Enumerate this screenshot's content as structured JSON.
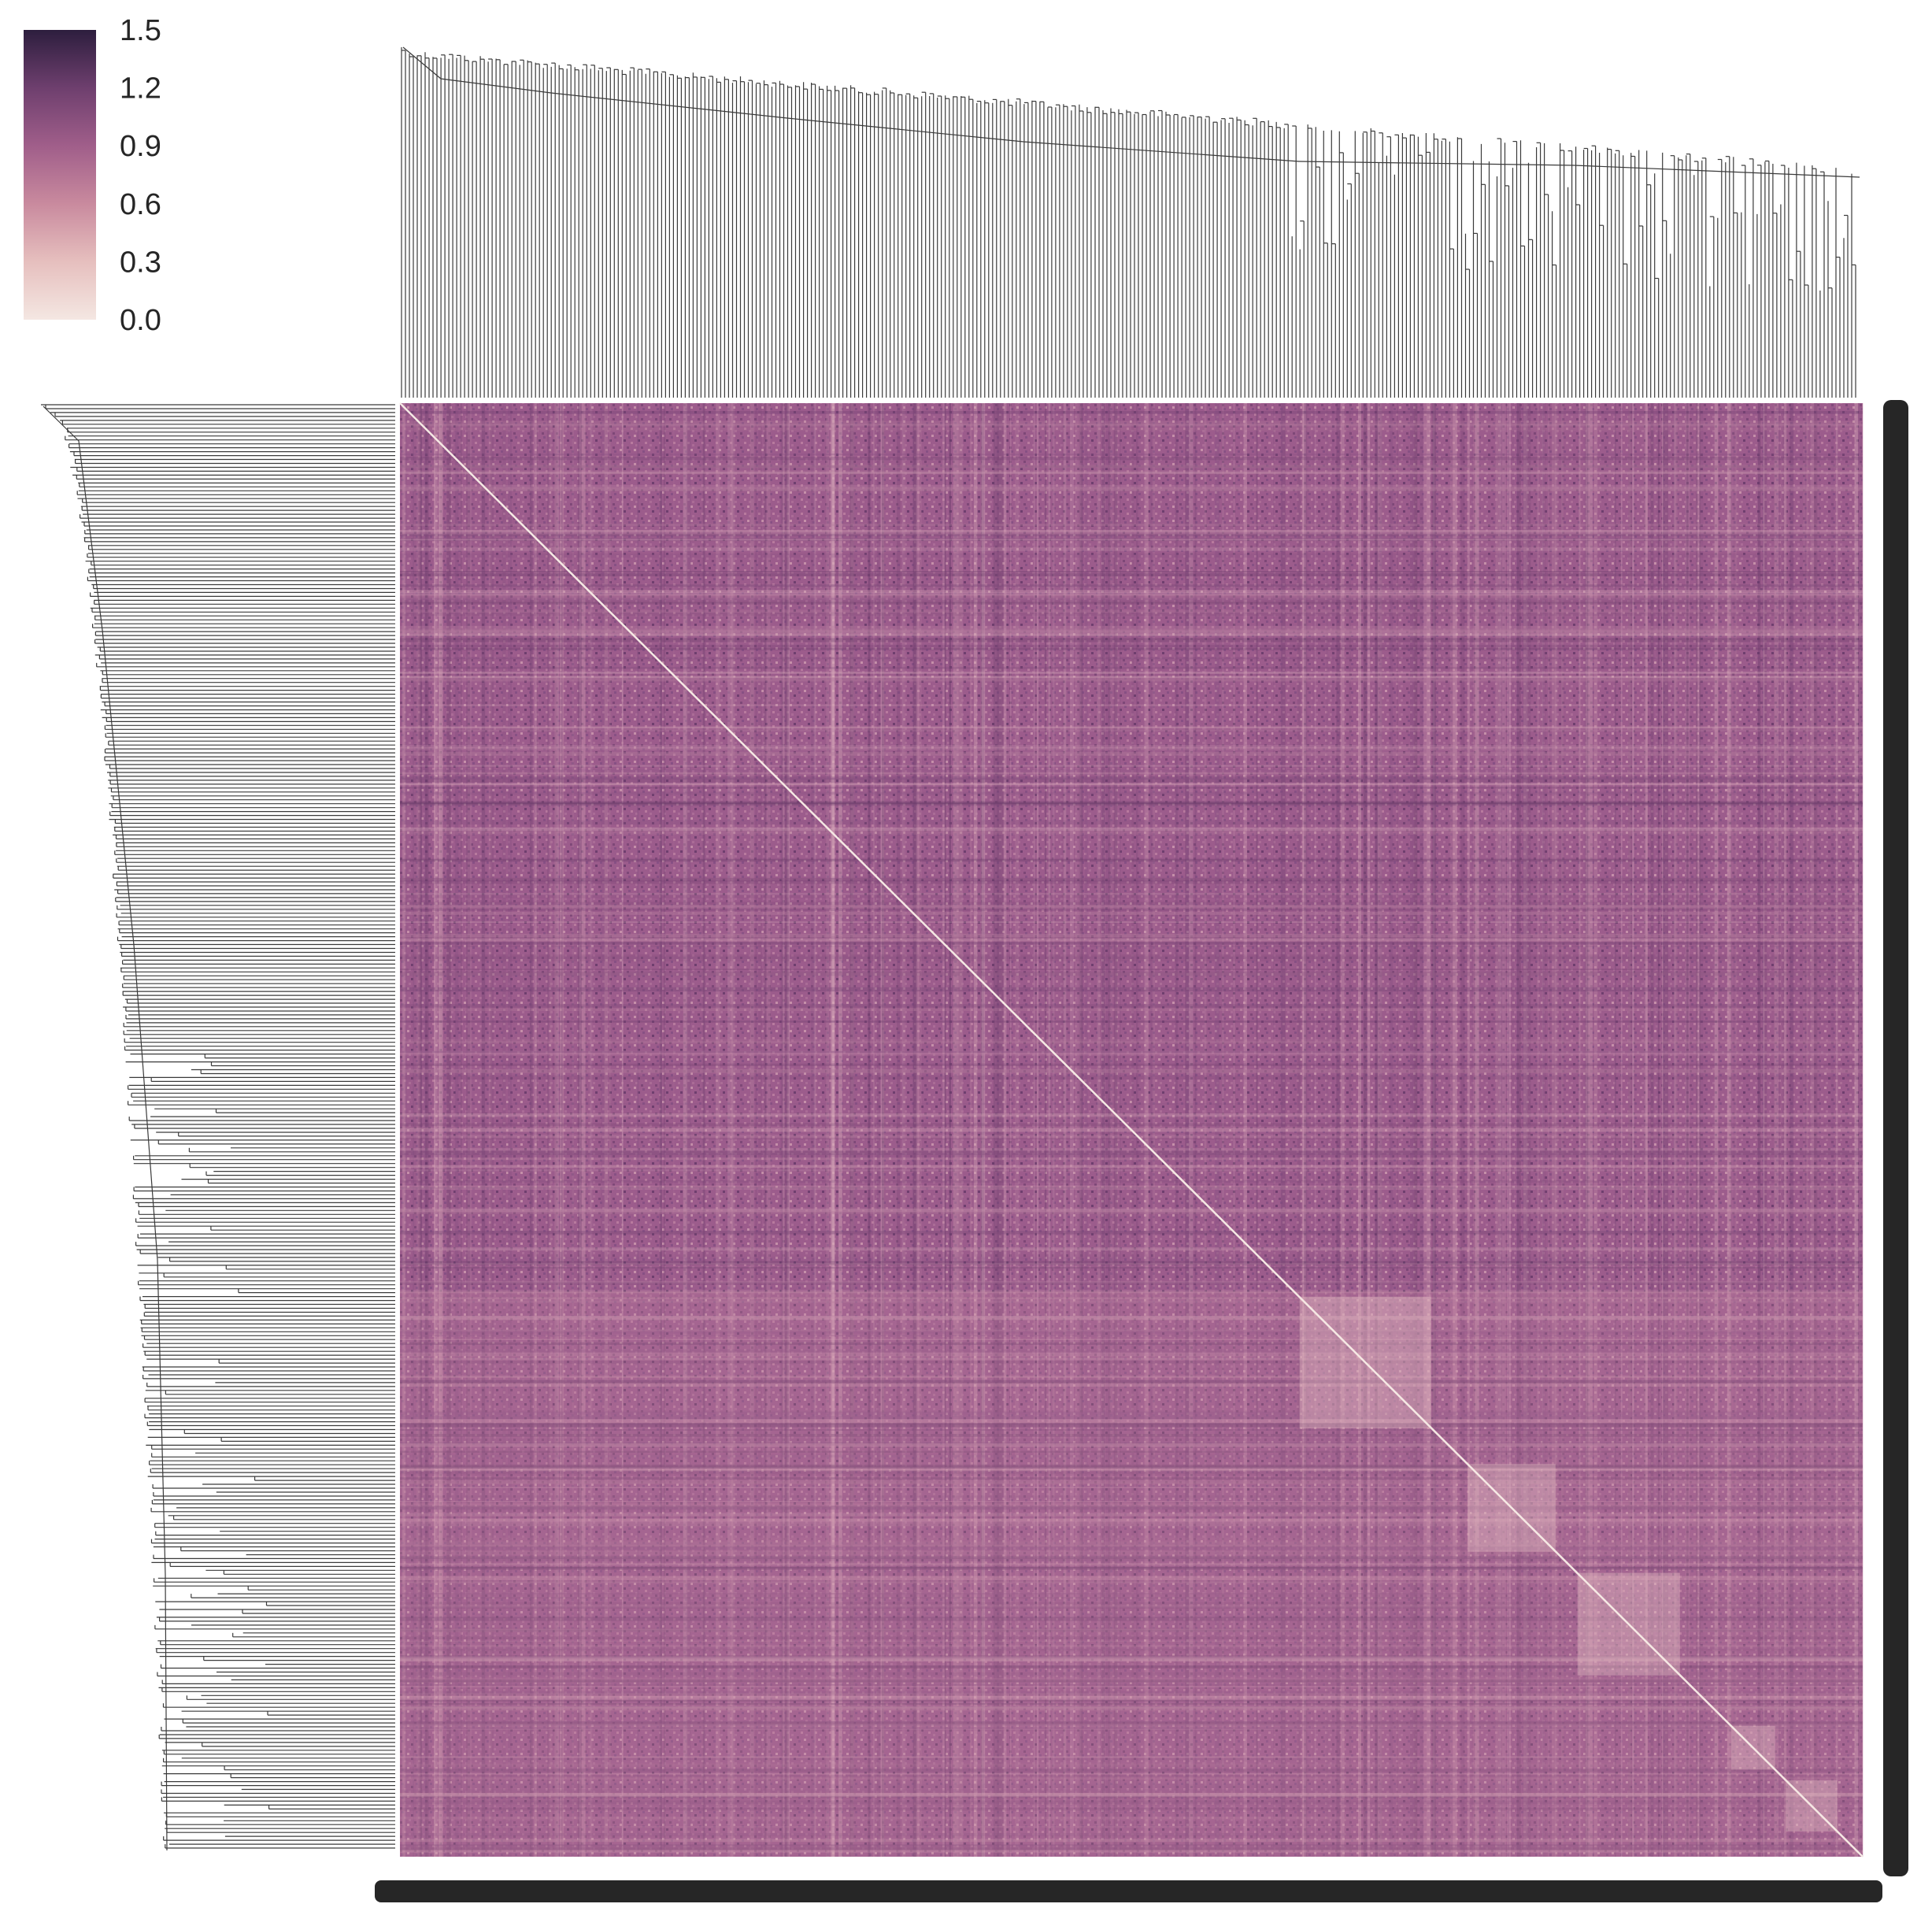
{
  "chart_data": {
    "type": "heatmap",
    "title": "",
    "xlabel": "",
    "ylabel": "",
    "clustermap": true,
    "row_dendrogram": true,
    "col_dendrogram": true,
    "colorbar": {
      "placement": "top-left",
      "vmin": 0.0,
      "vmax": 1.5,
      "ticks": [
        "0.0",
        "0.3",
        "0.6",
        "0.9",
        "1.2",
        "1.5"
      ],
      "colors": [
        "#f4e7e2",
        "#e6bfbe",
        "#c98a9e",
        "#a05e8a",
        "#6e3f6e",
        "#2d1e3e"
      ]
    },
    "diagonal_value": 0.0,
    "typical_value": 0.9,
    "tick_labels": "dense overlapping integer labels (unreadable)",
    "colors": {
      "dendrogram_line": "#3a3a3a",
      "tick_ink": "#262626",
      "background": "#ffffff"
    }
  }
}
